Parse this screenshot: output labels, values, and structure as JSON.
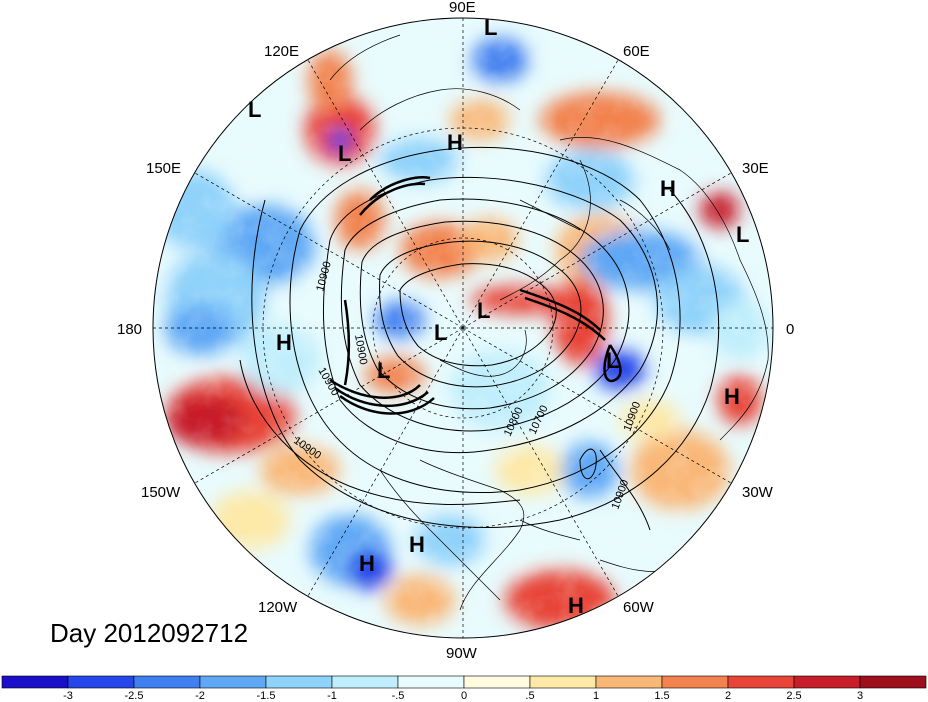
{
  "title": "Day 2012092712",
  "longitude_labels": {
    "top": "90E",
    "upper_left": "120E",
    "upper_right": "60E",
    "left_upper": "150E",
    "right_upper": "30E",
    "left": "180",
    "right": "0",
    "left_lower": "150W",
    "right_lower": "30W",
    "lower_left": "120W",
    "lower_right": "60W",
    "bottom": "90W"
  },
  "pressure_centers": [
    {
      "type": "L",
      "label": "L"
    },
    {
      "type": "L",
      "label": "L"
    },
    {
      "type": "L",
      "label": "L"
    },
    {
      "type": "L",
      "label": "L"
    },
    {
      "type": "L",
      "label": "L"
    },
    {
      "type": "L",
      "label": "L"
    },
    {
      "type": "L",
      "label": "L"
    },
    {
      "type": "L",
      "label": "L"
    },
    {
      "type": "H",
      "label": "H"
    },
    {
      "type": "H",
      "label": "H"
    },
    {
      "type": "H",
      "label": "H"
    },
    {
      "type": "H",
      "label": "H"
    },
    {
      "type": "H",
      "label": "H"
    },
    {
      "type": "H",
      "label": "H"
    },
    {
      "type": "H",
      "label": "H"
    }
  ],
  "contour_labels": [
    "10900",
    "10900",
    "10900",
    "10900",
    "10900",
    "10700",
    "10800",
    "10900"
  ],
  "colorbar": {
    "ticks": [
      "-3",
      "-2.5",
      "-2",
      "-1.5",
      "-1",
      "-.5",
      "0",
      ".5",
      "1",
      "1.5",
      "2",
      "2.5",
      "3"
    ],
    "colors": [
      "#1a0fc8",
      "#2546e8",
      "#3f7ff0",
      "#5fa8f5",
      "#8fd2fa",
      "#c0eefc",
      "#e8fbfd",
      "#fffbe0",
      "#fde9a8",
      "#f9b878",
      "#f2834f",
      "#e84538",
      "#c81e2a",
      "#9e0f1c"
    ]
  }
}
